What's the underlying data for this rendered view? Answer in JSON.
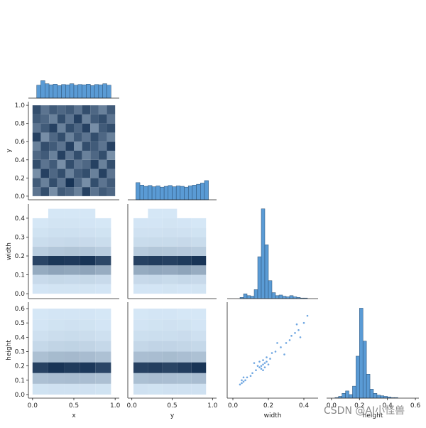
{
  "chart_data": [
    {
      "type": "histogram",
      "xlim": [
        -0.05,
        1.05
      ],
      "ylim": [
        0,
        240
      ],
      "bins": [
        0.05,
        0.1,
        0.15,
        0.2,
        0.25,
        0.3,
        0.35,
        0.4,
        0.45,
        0.5,
        0.55,
        0.6,
        0.65,
        0.7,
        0.75,
        0.8,
        0.85,
        0.9,
        0.95
      ],
      "counts": [
        34,
        46,
        38,
        35,
        37,
        33,
        36,
        35,
        38,
        34,
        36,
        35,
        37,
        33,
        36,
        35,
        38,
        34
      ]
    },
    {
      "type": "heatmap",
      "xlim": [
        -0.05,
        1.05
      ],
      "ylim": [
        -0.04,
        1.04
      ],
      "ylabel": "y",
      "yticks": [
        {
          "value": 0,
          "label": "0.0"
        },
        {
          "value": 0.2,
          "label": "0.2"
        },
        {
          "value": 0.4,
          "label": "0.4"
        },
        {
          "value": 0.6,
          "label": "0.6"
        },
        {
          "value": 0.8,
          "label": "0.8"
        },
        {
          "value": 1,
          "label": "1.0"
        }
      ],
      "xbins": [
        0,
        0.1,
        0.2,
        0.3,
        0.4,
        0.5,
        0.6,
        0.7,
        0.8,
        0.9,
        1.0
      ],
      "ybins": [
        0,
        0.1,
        0.2,
        0.3,
        0.4,
        0.5,
        0.6,
        0.7,
        0.8,
        0.9,
        1.0
      ],
      "counts": [
        [
          9,
          12,
          7,
          11,
          10,
          8,
          13,
          9,
          11,
          10
        ],
        [
          11,
          8,
          12,
          9,
          14,
          10,
          7,
          12,
          9,
          11
        ],
        [
          7,
          13,
          10,
          12,
          8,
          11,
          12,
          8,
          13,
          9
        ],
        [
          12,
          9,
          11,
          7,
          12,
          9,
          10,
          13,
          8,
          12
        ],
        [
          10,
          11,
          8,
          13,
          9,
          12,
          8,
          10,
          12,
          7
        ],
        [
          8,
          12,
          11,
          9,
          13,
          7,
          12,
          11,
          9,
          13
        ],
        [
          13,
          7,
          10,
          12,
          8,
          11,
          9,
          12,
          10,
          8
        ],
        [
          9,
          11,
          13,
          8,
          12,
          10,
          13,
          7,
          11,
          12
        ],
        [
          11,
          10,
          8,
          12,
          9,
          13,
          8,
          11,
          12,
          9
        ],
        [
          12,
          9,
          11,
          10,
          11,
          9,
          12,
          10,
          8,
          11
        ]
      ]
    },
    {
      "type": "histogram",
      "xlim": [
        -0.05,
        1.05
      ],
      "ylim": [
        0,
        240
      ],
      "bins": [
        0.05,
        0.1,
        0.15,
        0.2,
        0.25,
        0.3,
        0.35,
        0.4,
        0.45,
        0.5,
        0.55,
        0.6,
        0.65,
        0.7,
        0.75,
        0.8,
        0.85,
        0.9,
        0.95
      ],
      "counts": [
        42,
        36,
        33,
        35,
        32,
        34,
        31,
        33,
        35,
        32,
        34,
        33,
        31,
        34,
        36,
        38,
        41,
        47
      ]
    },
    {
      "type": "heatmap",
      "xlim": [
        -0.05,
        1.05
      ],
      "ylim": [
        -0.026,
        0.475
      ],
      "ylabel": "width",
      "yticks": [
        {
          "value": 0,
          "label": "0.0"
        },
        {
          "value": 0.1,
          "label": "0.1"
        },
        {
          "value": 0.2,
          "label": "0.2"
        },
        {
          "value": 0.3,
          "label": "0.3"
        },
        {
          "value": 0.4,
          "label": "0.4"
        }
      ],
      "xbins": [
        0,
        0.19,
        0.38,
        0.57,
        0.76,
        0.95
      ],
      "ybins": [
        0,
        0.05,
        0.1,
        0.15,
        0.2,
        0.25,
        0.3,
        0.35,
        0.4,
        0.45
      ],
      "counts": [
        [
          2,
          3,
          3,
          3,
          2
        ],
        [
          10,
          12,
          11,
          12,
          10
        ],
        [
          45,
          50,
          48,
          50,
          44
        ],
        [
          120,
          130,
          128,
          132,
          118
        ],
        [
          20,
          24,
          26,
          24,
          20
        ],
        [
          8,
          10,
          11,
          10,
          8
        ],
        [
          4,
          6,
          6,
          5,
          4
        ],
        [
          1,
          3,
          3,
          2,
          1
        ],
        [
          0,
          1,
          1,
          1,
          0
        ]
      ]
    },
    {
      "type": "heatmap",
      "xlim": [
        -0.05,
        1.05
      ],
      "ylim": [
        -0.026,
        0.475
      ],
      "xbins": [
        0.02,
        0.2,
        0.38,
        0.56,
        0.74,
        0.92
      ],
      "ybins": [
        0,
        0.05,
        0.1,
        0.15,
        0.2,
        0.25,
        0.3,
        0.35,
        0.4,
        0.45
      ],
      "counts": [
        [
          2,
          2,
          3,
          2,
          3
        ],
        [
          11,
          12,
          10,
          12,
          11
        ],
        [
          46,
          49,
          47,
          51,
          45
        ],
        [
          125,
          128,
          126,
          130,
          135
        ],
        [
          22,
          25,
          24,
          23,
          21
        ],
        [
          9,
          10,
          10,
          11,
          9
        ],
        [
          5,
          5,
          6,
          5,
          4
        ],
        [
          2,
          2,
          3,
          2,
          1
        ],
        [
          0,
          1,
          1,
          0,
          0
        ]
      ]
    },
    {
      "type": "histogram",
      "xlim": [
        -0.032,
        0.48
      ],
      "ylim": [
        0,
        158
      ],
      "bins": [
        0,
        0.02,
        0.04,
        0.06,
        0.08,
        0.1,
        0.12,
        0.14,
        0.16,
        0.18,
        0.2,
        0.22,
        0.24,
        0.26,
        0.28,
        0.3,
        0.32,
        0.34,
        0.36,
        0.38,
        0.4,
        0.42,
        0.44
      ],
      "counts": [
        0,
        0,
        2,
        8,
        5,
        4,
        15,
        70,
        150,
        90,
        30,
        10,
        5,
        6,
        4,
        3,
        5,
        3,
        2,
        1,
        1,
        0
      ]
    },
    {
      "type": "heatmap",
      "xlim": [
        -0.05,
        1.05
      ],
      "ylim": [
        -0.025,
        0.645
      ],
      "ylabel": "height",
      "xlabel": "x",
      "xticks": [
        {
          "value": 0,
          "label": "0.0"
        },
        {
          "value": 0.5,
          "label": "0.5"
        },
        {
          "value": 1,
          "label": "1.0"
        }
      ],
      "yticks": [
        {
          "value": 0,
          "label": "0.0"
        },
        {
          "value": 0.1,
          "label": "0.1"
        },
        {
          "value": 0.2,
          "label": "0.2"
        },
        {
          "value": 0.3,
          "label": "0.3"
        },
        {
          "value": 0.4,
          "label": "0.4"
        },
        {
          "value": 0.5,
          "label": "0.5"
        },
        {
          "value": 0.6,
          "label": "0.6"
        }
      ],
      "xbins": [
        0,
        0.19,
        0.38,
        0.57,
        0.76,
        0.95
      ],
      "ybins": [
        0,
        0.075,
        0.15,
        0.225,
        0.3,
        0.375,
        0.45,
        0.525,
        0.6
      ],
      "counts": [
        [
          4,
          5,
          5,
          5,
          4
        ],
        [
          30,
          32,
          33,
          32,
          30
        ],
        [
          125,
          135,
          130,
          132,
          122
        ],
        [
          30,
          34,
          35,
          33,
          29
        ],
        [
          12,
          15,
          16,
          15,
          12
        ],
        [
          6,
          8,
          9,
          8,
          6
        ],
        [
          2,
          4,
          5,
          4,
          2
        ],
        [
          1,
          2,
          2,
          2,
          1
        ]
      ]
    },
    {
      "type": "heatmap",
      "xlim": [
        -0.05,
        1.05
      ],
      "ylim": [
        -0.025,
        0.645
      ],
      "xlabel": "y",
      "xticks": [
        {
          "value": 0,
          "label": "0.0"
        },
        {
          "value": 0.5,
          "label": "0.5"
        },
        {
          "value": 1,
          "label": "1.0"
        }
      ],
      "xbins": [
        0.02,
        0.2,
        0.38,
        0.56,
        0.74,
        0.92
      ],
      "ybins": [
        0,
        0.075,
        0.15,
        0.225,
        0.3,
        0.375,
        0.45,
        0.525,
        0.6
      ],
      "counts": [
        [
          5,
          4,
          5,
          5,
          5
        ],
        [
          31,
          33,
          32,
          31,
          33
        ],
        [
          128,
          130,
          126,
          131,
          138
        ],
        [
          32,
          33,
          34,
          32,
          30
        ],
        [
          13,
          15,
          15,
          14,
          12
        ],
        [
          7,
          8,
          8,
          9,
          6
        ],
        [
          3,
          4,
          5,
          4,
          2
        ],
        [
          1,
          2,
          2,
          1,
          1
        ]
      ]
    },
    {
      "type": "scatter",
      "xlim": [
        -0.032,
        0.48
      ],
      "ylim": [
        -0.025,
        0.645
      ],
      "xlabel": "width",
      "color": "#4a90d9",
      "xticks": [
        {
          "value": 0,
          "label": "0.0"
        },
        {
          "value": 0.2,
          "label": "0.2"
        },
        {
          "value": 0.4,
          "label": "0.4"
        }
      ],
      "x": [
        0.17,
        0.16,
        0.18,
        0.15,
        0.19,
        0.17,
        0.16,
        0.14,
        0.2,
        0.18,
        0.15,
        0.17,
        0.21,
        0.13,
        0.19,
        0.05,
        0.06,
        0.07,
        0.05,
        0.04,
        0.08,
        0.06,
        0.24,
        0.27,
        0.3,
        0.33,
        0.35,
        0.37,
        0.4,
        0.42,
        0.38,
        0.29,
        0.25,
        0.22,
        0.11,
        0.12,
        0.1,
        0.36,
        0.32
      ],
      "y": [
        0.21,
        0.2,
        0.22,
        0.19,
        0.23,
        0.24,
        0.18,
        0.2,
        0.21,
        0.19,
        0.23,
        0.17,
        0.25,
        0.17,
        0.26,
        0.08,
        0.09,
        0.1,
        0.1,
        0.07,
        0.12,
        0.12,
        0.3,
        0.33,
        0.36,
        0.41,
        0.43,
        0.45,
        0.5,
        0.55,
        0.4,
        0.28,
        0.36,
        0.29,
        0.15,
        0.22,
        0.13,
        0.49,
        0.38
      ]
    },
    {
      "type": "histogram",
      "xlim": [
        -0.035,
        0.625
      ],
      "ylim": [
        0,
        160
      ],
      "xlabel": "height",
      "xticks": [
        {
          "value": 0,
          "label": "0.0"
        },
        {
          "value": 0.2,
          "label": "0.2"
        },
        {
          "value": 0.4,
          "label": "0.4"
        },
        {
          "value": 0.6,
          "label": "0.6"
        }
      ],
      "bins": [
        0,
        0.025,
        0.05,
        0.075,
        0.1,
        0.125,
        0.15,
        0.175,
        0.2,
        0.225,
        0.25,
        0.275,
        0.3,
        0.325,
        0.35,
        0.375,
        0.4,
        0.425,
        0.45,
        0.475,
        0.5
      ],
      "counts": [
        0,
        1,
        3,
        8,
        12,
        6,
        20,
        70,
        150,
        95,
        40,
        15,
        8,
        5,
        4,
        3,
        2,
        1,
        1,
        0
      ]
    }
  ],
  "watermark": "CSDN @AI小怪兽"
}
